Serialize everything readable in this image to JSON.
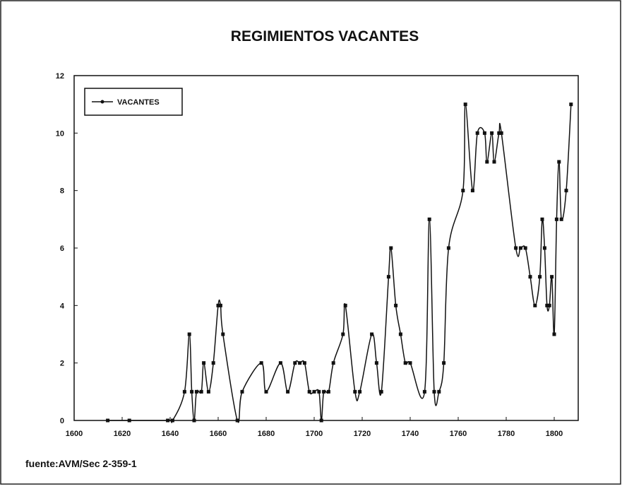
{
  "chart_data": {
    "type": "line",
    "title": "REGIMIENTOS VACANTES",
    "source": "fuente:AVM/Sec 2-359-1",
    "x": [
      1614,
      1623,
      1639,
      1641,
      1646,
      1648,
      1649,
      1650,
      1651,
      1653,
      1654,
      1656,
      1658,
      1660,
      1661,
      1662,
      1668,
      1670,
      1678,
      1680,
      1686,
      1689,
      1692,
      1694,
      1696,
      1698,
      1700,
      1702,
      1703,
      1704,
      1706,
      1708,
      1712,
      1713,
      1717,
      1719,
      1724,
      1726,
      1728,
      1731,
      1732,
      1734,
      1736,
      1738,
      1740,
      1746,
      1748,
      1750,
      1752,
      1754,
      1756,
      1762,
      1763,
      1766,
      1768,
      1771,
      1772,
      1774,
      1775,
      1777,
      1778,
      1784,
      1786,
      1788,
      1790,
      1792,
      1794,
      1795,
      1796,
      1797,
      1798,
      1799,
      1800,
      1801,
      1802,
      1803,
      1805,
      1807
    ],
    "series": [
      {
        "name": "VACANTES",
        "color": "#111111",
        "values": [
          0,
          0,
          0,
          0,
          1,
          3,
          1,
          0,
          1,
          1,
          2,
          1,
          2,
          4,
          4,
          3,
          0,
          1,
          2,
          1,
          2,
          1,
          2,
          2,
          2,
          1,
          1,
          1,
          0,
          1,
          1,
          2,
          3,
          4,
          1,
          1,
          3,
          2,
          1,
          5,
          6,
          4,
          3,
          2,
          2,
          1,
          7,
          1,
          1,
          2,
          6,
          8,
          11,
          8,
          10,
          10,
          9,
          10,
          9,
          10,
          10,
          6,
          6,
          6,
          5,
          4,
          5,
          7,
          6,
          4,
          4,
          5,
          3,
          7,
          9,
          7,
          8,
          11
        ]
      }
    ],
    "xlim": [
      1600,
      1810
    ],
    "ylim": [
      0,
      12
    ],
    "xticks": [
      1600,
      1620,
      1640,
      1660,
      1680,
      1700,
      1720,
      1740,
      1760,
      1780,
      1800
    ],
    "yticks": [
      0,
      2,
      4,
      6,
      8,
      10,
      12
    ],
    "legend": "top-left"
  }
}
